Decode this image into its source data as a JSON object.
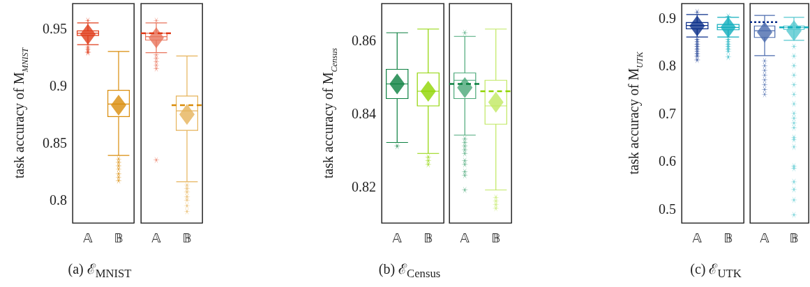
{
  "chart_data": [
    {
      "type": "box",
      "title": "(a) ℰ$_{MNIST}$",
      "ylabel": "task accuracy of M$_{MNIST}$",
      "categories": [
        "𝔸",
        "𝔹"
      ],
      "colors": [
        "#e03c1a",
        "#d98c0a"
      ],
      "ylim": [
        0.78,
        0.972
      ],
      "yticks": [
        0.8,
        0.85,
        0.9,
        0.95
      ],
      "boxes": [
        {
          "low": 0.936,
          "q1": 0.944,
          "median": 0.946,
          "q3": 0.948,
          "high": 0.955,
          "mean": 0.945,
          "outliers": [
            0.957,
            0.934,
            0.932,
            0.93,
            0.929
          ]
        },
        {
          "low": 0.839,
          "q1": 0.873,
          "median": 0.884,
          "q3": 0.896,
          "high": 0.93,
          "mean": 0.883,
          "outliers": [
            0.836,
            0.833,
            0.83,
            0.827,
            0.823,
            0.82,
            0.817
          ]
        }
      ]
    },
    {
      "type": "box",
      "categories": [
        "𝔸",
        "𝔹"
      ],
      "colors": [
        "#e8735a",
        "#e6b35a"
      ],
      "ylim": [
        0.78,
        0.972
      ],
      "yticks": [
        0.8,
        0.85,
        0.9,
        0.95
      ],
      "tick_labels": "x",
      "boxes": [
        {
          "low": 0.929,
          "q1": 0.94,
          "median": 0.943,
          "q3": 0.946,
          "high": 0.955,
          "mean": 0.942,
          "outliers": [
            0.957,
            0.927,
            0.924,
            0.921,
            0.918,
            0.915,
            0.835
          ]
        },
        {
          "low": 0.816,
          "q1": 0.861,
          "median": 0.878,
          "q3": 0.891,
          "high": 0.926,
          "mean": 0.875,
          "outliers": [
            0.813,
            0.81,
            0.807,
            0.803,
            0.8,
            0.795,
            0.79
          ]
        }
      ],
      "ref_lines": [
        {
          "axis": "y",
          "value": 0.946,
          "color": "#e03c1a",
          "line_style": "dashed"
        },
        {
          "axis": "y",
          "value": 0.883,
          "color": "#d98c0a",
          "line_style": "dashed"
        }
      ]
    },
    {
      "type": "box",
      "title": "(b) ℰ$_{Census}$",
      "ylabel": "task accuracy of M$_{Census}$",
      "categories": [
        "𝔸",
        "𝔹"
      ],
      "colors": [
        "#0a7f3f",
        "#8fd400"
      ],
      "ylim": [
        0.81,
        0.87
      ],
      "yticks": [
        0.82,
        0.84,
        0.86
      ],
      "boxes": [
        {
          "low": 0.832,
          "q1": 0.844,
          "median": 0.848,
          "q3": 0.852,
          "high": 0.862,
          "mean": 0.848,
          "outliers": [
            0.831
          ]
        },
        {
          "low": 0.829,
          "q1": 0.842,
          "median": 0.846,
          "q3": 0.851,
          "high": 0.863,
          "mean": 0.846,
          "outliers": [
            0.828,
            0.827,
            0.826
          ]
        }
      ]
    },
    {
      "type": "box",
      "categories": [
        "𝔸",
        "𝔹"
      ],
      "colors": [
        "#4aa878",
        "#c0e860"
      ],
      "ylim": [
        0.81,
        0.87
      ],
      "yticks": [
        0.82,
        0.84,
        0.86
      ],
      "tick_labels": "x",
      "boxes": [
        {
          "low": 0.834,
          "q1": 0.844,
          "median": 0.849,
          "q3": 0.851,
          "high": 0.861,
          "mean": 0.847,
          "outliers": [
            0.862,
            0.833,
            0.832,
            0.831,
            0.83,
            0.829,
            0.827,
            0.826,
            0.824,
            0.823,
            0.819
          ]
        },
        {
          "low": 0.819,
          "q1": 0.837,
          "median": 0.842,
          "q3": 0.849,
          "high": 0.863,
          "mean": 0.843,
          "outliers": [
            0.817,
            0.816,
            0.815,
            0.814
          ]
        }
      ],
      "ref_lines": [
        {
          "axis": "y",
          "value": 0.848,
          "color": "#0a7f3f",
          "line_style": "dashed"
        },
        {
          "axis": "y",
          "value": 0.846,
          "color": "#8fd400",
          "line_style": "dashed"
        }
      ]
    },
    {
      "type": "box",
      "title": "(c) ℰ$_{UTK}$",
      "ylabel": "task accuracy of M$_{UTK}$",
      "categories": [
        "𝔸",
        "𝔹"
      ],
      "colors": [
        "#0a2e8a",
        "#10aebd"
      ],
      "ylim": [
        0.471,
        0.93
      ],
      "yticks": [
        0.5,
        0.6,
        0.7,
        0.8,
        0.9
      ],
      "boxes": [
        {
          "low": 0.86,
          "q1": 0.877,
          "median": 0.884,
          "q3": 0.89,
          "high": 0.907,
          "mean": 0.883,
          "outliers": [
            0.912,
            0.855,
            0.85,
            0.845,
            0.84,
            0.835,
            0.83,
            0.825,
            0.82,
            0.812
          ]
        },
        {
          "low": 0.86,
          "q1": 0.875,
          "median": 0.88,
          "q3": 0.886,
          "high": 0.901,
          "mean": 0.88,
          "outliers": [
            0.903,
            0.855,
            0.85,
            0.845,
            0.84,
            0.835,
            0.83,
            0.818
          ]
        }
      ]
    },
    {
      "type": "box",
      "categories": [
        "𝔸",
        "𝔹"
      ],
      "colors": [
        "#4a6aad",
        "#55c8d0"
      ],
      "ylim": [
        0.471,
        0.93
      ],
      "yticks": [
        0.5,
        0.6,
        0.7,
        0.8,
        0.9
      ],
      "tick_labels": "x",
      "boxes": [
        {
          "low": 0.821,
          "q1": 0.859,
          "median": 0.873,
          "q3": 0.883,
          "high": 0.905,
          "mean": 0.87,
          "outliers": [
            0.81,
            0.8,
            0.79,
            0.78,
            0.77,
            0.76,
            0.75,
            0.74
          ]
        },
        {
          "low": 0.853,
          "q1": 0.876,
          "median": 0.88,
          "q3": 0.883,
          "high": 0.901,
          "mean": 0.873,
          "outliers": [
            0.84,
            0.82,
            0.8,
            0.78,
            0.76,
            0.74,
            0.72,
            0.7,
            0.69,
            0.68,
            0.67,
            0.65,
            0.645,
            0.63,
            0.59,
            0.585,
            0.557,
            0.541,
            0.519,
            0.488
          ]
        }
      ],
      "ref_lines": [
        {
          "axis": "y",
          "value": 0.891,
          "color": "#0a2e8a",
          "line_style": "dotted"
        },
        {
          "axis": "y",
          "value": 0.88,
          "color": "#10aebd",
          "line_style": "dashed"
        }
      ]
    }
  ]
}
